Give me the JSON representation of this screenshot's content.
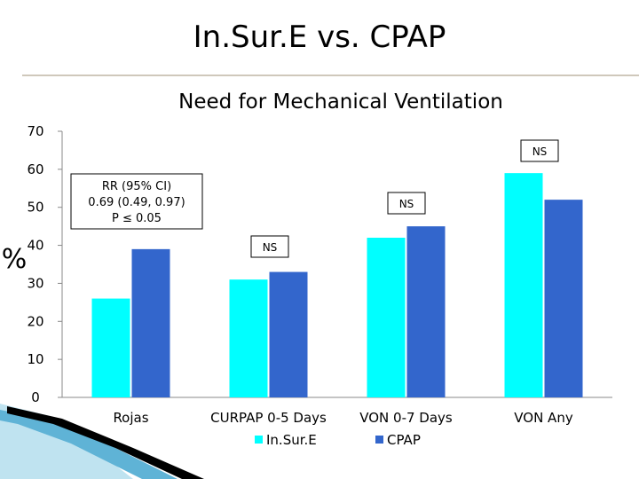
{
  "slide": {
    "title": "In.Sur.E vs. CPAP"
  },
  "chart_data": {
    "type": "bar",
    "title": "Need for Mechanical Ventilation",
    "ylabel": "%",
    "xlabel": "",
    "ylim": [
      0,
      70
    ],
    "yticks": [
      0,
      10,
      20,
      30,
      40,
      50,
      60,
      70
    ],
    "categories": [
      "Rojas",
      "CURPAP 0-5 Days",
      "VON 0-7 Days",
      "VON Any"
    ],
    "series": [
      {
        "name": "In.Sur.E",
        "color": "#00ffff",
        "values": [
          26,
          31,
          42,
          59
        ]
      },
      {
        "name": "CPAP",
        "color": "#3366cc",
        "values": [
          39,
          33,
          45,
          52
        ]
      }
    ],
    "legend": "bottom",
    "grid": false,
    "annotations": {
      "rr_box": [
        "RR (95% CI)",
        "0.69 (0.49, 0.97)",
        "P ≤ 0.05"
      ],
      "ns_labels": [
        "NS",
        "NS",
        "NS"
      ]
    }
  }
}
